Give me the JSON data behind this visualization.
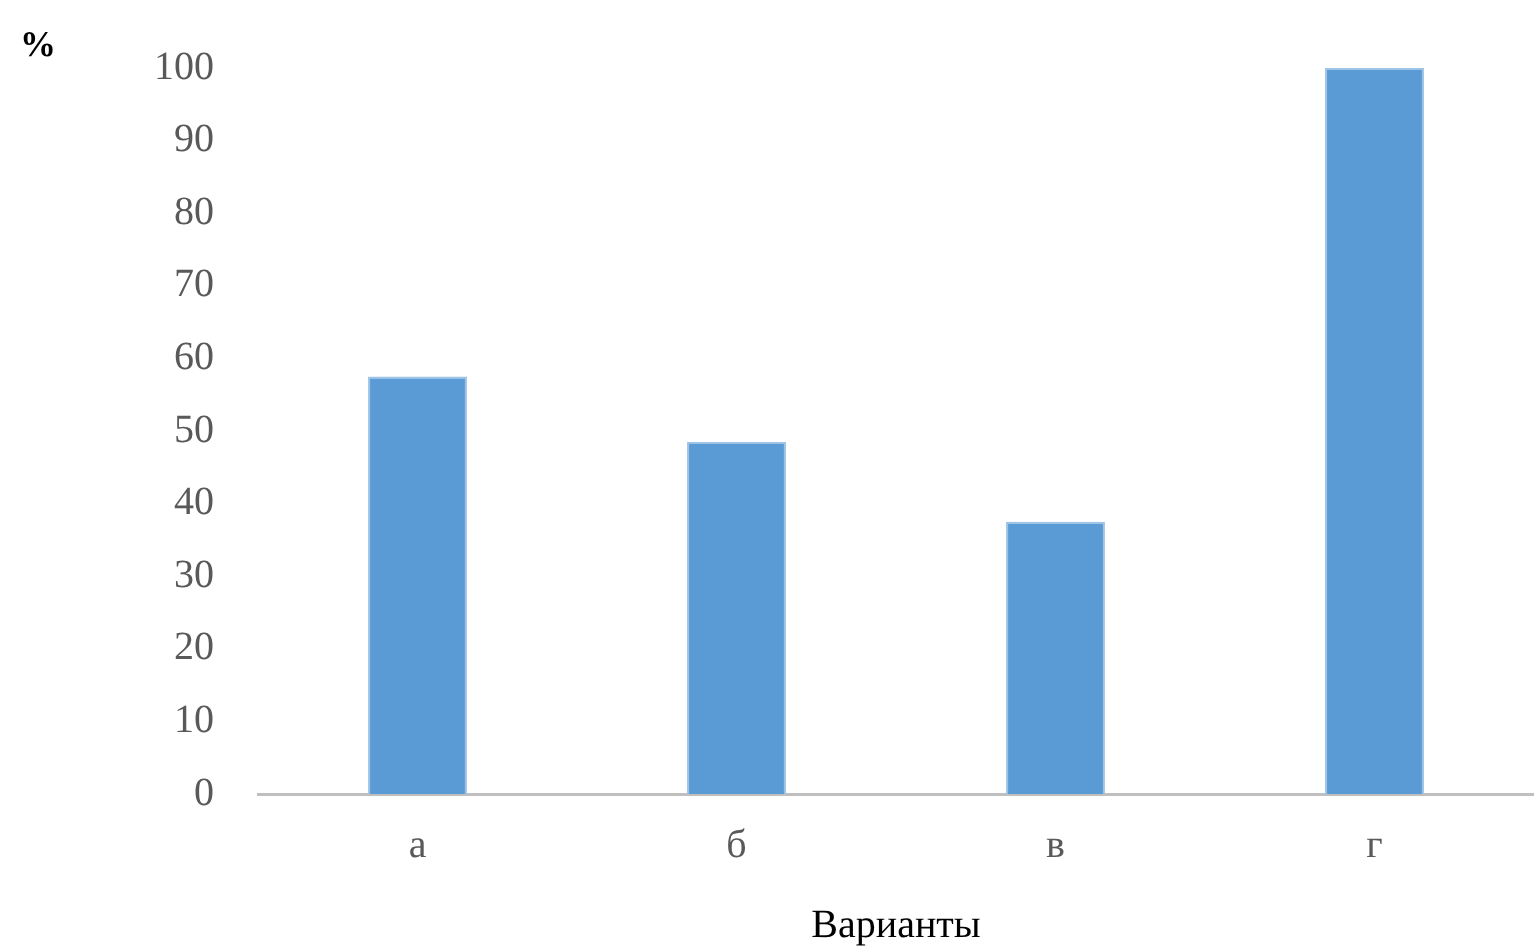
{
  "chart_data": {
    "type": "bar",
    "ylabel": "%",
    "xlabel": "Варианты",
    "categories": [
      "а",
      "б",
      "в",
      "г"
    ],
    "values": [
      57.5,
      48.5,
      37.5,
      100
    ],
    "color": "#5b9bd5",
    "ylim": [
      0,
      100
    ],
    "yticks": [
      0,
      10,
      20,
      30,
      40,
      50,
      60,
      70,
      80,
      90,
      100
    ],
    "grid": false,
    "legend": false
  }
}
